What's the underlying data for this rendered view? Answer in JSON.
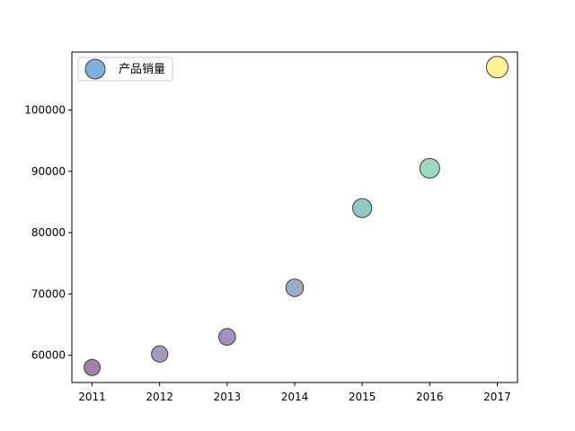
{
  "chart_data": {
    "type": "scatter",
    "x": [
      2011,
      2012,
      2013,
      2014,
      2015,
      2016,
      2017
    ],
    "y": [
      58000,
      60200,
      63000,
      71000,
      84000,
      90500,
      107000
    ],
    "point_colors": [
      "#440154",
      "#46337e",
      "#482677",
      "#365c8d",
      "#21918c",
      "#35b779",
      "#fde725"
    ],
    "edge_color": "#3a3a3a",
    "legend": {
      "placement": "upper-left",
      "entries": [
        {
          "label": "产品销量",
          "color": "#1f77b4"
        }
      ]
    },
    "x_ticks": [
      "2011",
      "2012",
      "2013",
      "2014",
      "2015",
      "2016",
      "2017"
    ],
    "y_ticks": [
      "60000",
      "70000",
      "80000",
      "90000",
      "100000"
    ],
    "xlim": [
      2010.7,
      2017.3
    ],
    "ylim": [
      55550,
      109450
    ],
    "title": "",
    "xlabel": "",
    "ylabel": "",
    "grid": false
  }
}
